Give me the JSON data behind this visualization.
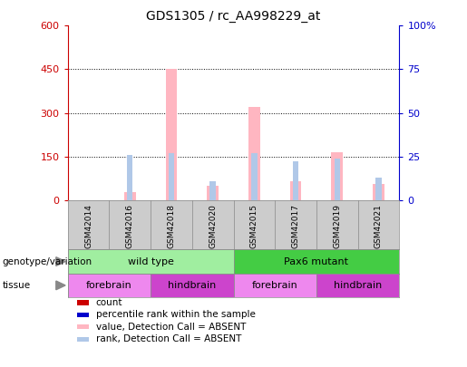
{
  "title": "GDS1305 / rc_AA998229_at",
  "samples": [
    "GSM42014",
    "GSM42016",
    "GSM42018",
    "GSM42020",
    "GSM42015",
    "GSM42017",
    "GSM42019",
    "GSM42021"
  ],
  "absent_value": [
    0,
    28,
    450,
    50,
    320,
    65,
    165,
    55
  ],
  "absent_rank_pct": [
    0,
    26,
    27,
    11,
    27,
    22,
    24,
    13
  ],
  "ylim_left": [
    0,
    600
  ],
  "ylim_right": [
    0,
    100
  ],
  "yticks_left": [
    0,
    150,
    300,
    450,
    600
  ],
  "yticks_right": [
    0,
    25,
    50,
    75,
    100
  ],
  "left_tick_labels": [
    "0",
    "150",
    "300",
    "450",
    "600"
  ],
  "right_tick_labels": [
    "0",
    "25",
    "50",
    "75",
    "100%"
  ],
  "left_color": "#cc0000",
  "right_color": "#0000cc",
  "absent_bar_color": "#ffb6c1",
  "absent_rank_color": "#b0c8e8",
  "genotype_groups": [
    {
      "label": "wild type",
      "start": 0,
      "end": 4,
      "color": "#a0eeA0"
    },
    {
      "label": "Pax6 mutant",
      "start": 4,
      "end": 8,
      "color": "#44cc44"
    }
  ],
  "tissue_groups": [
    {
      "label": "forebrain",
      "start": 0,
      "end": 2,
      "color": "#ee88ee"
    },
    {
      "label": "hindbrain",
      "start": 2,
      "end": 4,
      "color": "#cc44cc"
    },
    {
      "label": "forebrain",
      "start": 4,
      "end": 6,
      "color": "#ee88ee"
    },
    {
      "label": "hindbrain",
      "start": 6,
      "end": 8,
      "color": "#cc44cc"
    }
  ],
  "legend_items": [
    {
      "label": "count",
      "color": "#cc0000"
    },
    {
      "label": "percentile rank within the sample",
      "color": "#0000cc"
    },
    {
      "label": "value, Detection Call = ABSENT",
      "color": "#ffb6c1"
    },
    {
      "label": "rank, Detection Call = ABSENT",
      "color": "#b0c8e8"
    }
  ],
  "bg_color": "#ffffff",
  "label_row_bg": "#cccccc",
  "grid_color": "#000000"
}
